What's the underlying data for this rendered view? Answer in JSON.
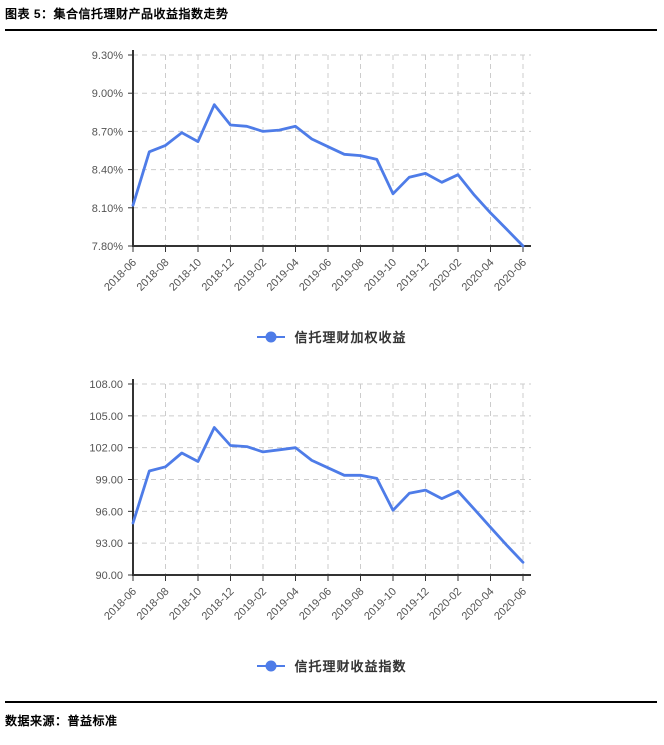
{
  "header": {
    "title": "图表 5：集合信托理财产品收益指数走势"
  },
  "footer": {
    "source": "数据来源：普益标准"
  },
  "colors": {
    "line": "#4e7ce8",
    "grid": "#cccccc",
    "axis": "#333333",
    "tick_label": "#545454"
  },
  "chart_data": [
    {
      "type": "line",
      "legend": "信托理财加权收益",
      "x": [
        "2018-06",
        "2018-07",
        "2018-08",
        "2018-09",
        "2018-10",
        "2018-11",
        "2018-12",
        "2019-01",
        "2019-02",
        "2019-03",
        "2019-04",
        "2019-05",
        "2019-06",
        "2019-07",
        "2019-08",
        "2019-09",
        "2019-10",
        "2019-11",
        "2019-12",
        "2020-01",
        "2020-02",
        "2020-03",
        "2020-04",
        "2020-05",
        "2020-06"
      ],
      "x_tick_labels": [
        "2018-06",
        "2018-08",
        "2018-10",
        "2018-12",
        "2019-02",
        "2019-04",
        "2019-06",
        "2019-08",
        "2019-10",
        "2019-12",
        "2020-02",
        "2020-04",
        "2020-06"
      ],
      "values": [
        8.12,
        8.54,
        8.59,
        8.69,
        8.62,
        8.91,
        8.75,
        8.74,
        8.7,
        8.71,
        8.74,
        8.64,
        8.58,
        8.52,
        8.51,
        8.48,
        8.21,
        8.34,
        8.37,
        8.3,
        8.36,
        8.2,
        8.06,
        7.93,
        7.8
      ],
      "yticks": [
        9.3,
        9.0,
        8.7,
        8.4,
        8.1,
        7.8
      ],
      "ytick_labels": [
        "9.30%",
        "9.00%",
        "8.70%",
        "8.40%",
        "8.10%",
        "7.80%"
      ],
      "ylim": [
        7.8,
        9.3
      ],
      "xlabel": "",
      "ylabel": "",
      "grid": true,
      "legend_position": "bottom"
    },
    {
      "type": "line",
      "legend": "信托理财收益指数",
      "x": [
        "2018-06",
        "2018-07",
        "2018-08",
        "2018-09",
        "2018-10",
        "2018-11",
        "2018-12",
        "2019-01",
        "2019-02",
        "2019-03",
        "2019-04",
        "2019-05",
        "2019-06",
        "2019-07",
        "2019-08",
        "2019-09",
        "2019-10",
        "2019-11",
        "2019-12",
        "2020-01",
        "2020-02",
        "2020-03",
        "2020-04",
        "2020-05",
        "2020-06"
      ],
      "x_tick_labels": [
        "2018-06",
        "2018-08",
        "2018-10",
        "2018-12",
        "2019-02",
        "2019-04",
        "2019-06",
        "2019-08",
        "2019-10",
        "2019-12",
        "2020-02",
        "2020-04",
        "2020-06"
      ],
      "values": [
        94.9,
        99.8,
        100.2,
        101.5,
        100.7,
        103.9,
        102.2,
        102.1,
        101.6,
        101.8,
        102.0,
        100.8,
        100.1,
        99.4,
        99.4,
        99.1,
        96.1,
        97.7,
        98.0,
        97.2,
        97.9,
        96.2,
        94.5,
        92.8,
        91.2
      ],
      "yticks": [
        108,
        105,
        102,
        99,
        96,
        93,
        90
      ],
      "ytick_labels": [
        "108.00",
        "105.00",
        "102.00",
        "99.00",
        "96.00",
        "93.00",
        "90.00"
      ],
      "ylim": [
        90,
        108
      ],
      "xlabel": "",
      "ylabel": "",
      "grid": true,
      "legend_position": "bottom"
    }
  ]
}
